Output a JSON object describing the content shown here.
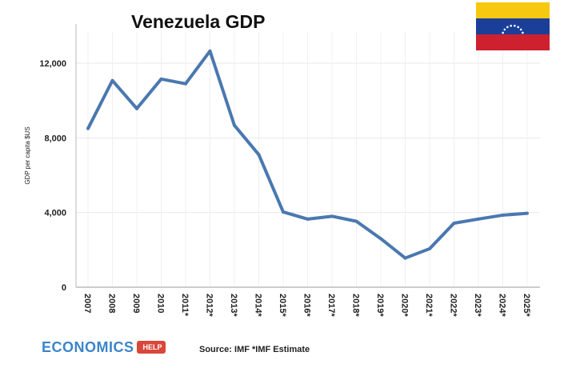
{
  "chart_data": {
    "type": "line",
    "title": "Venezuela GDP",
    "xlabel": "",
    "ylabel": "GDP per capita $US",
    "categories": [
      "2007",
      "2008",
      "2009",
      "2010",
      "2011*",
      "2012*",
      "2013*",
      "2014*",
      "2015*",
      "2016*",
      "2017*",
      "2018*",
      "2019*",
      "2020*",
      "2021*",
      "2022*",
      "2023*",
      "2024*",
      "2025*"
    ],
    "values": [
      8500,
      11070,
      9570,
      11150,
      10900,
      12650,
      8670,
      7100,
      4030,
      3650,
      3800,
      3530,
      2600,
      1560,
      2060,
      3430,
      3650,
      3860,
      3960
    ],
    "ylim": [
      0,
      14000
    ],
    "yticks": [
      0,
      4000,
      8000,
      12000
    ],
    "ytick_labels": [
      "0",
      "4,000",
      "8,000",
      "12,000"
    ],
    "grid": true,
    "line_color": "#4a78b0"
  },
  "source": "Source: IMF *IMF Estimate",
  "logo": {
    "name": "ECONOMICS",
    "badge": "HELP"
  },
  "flag": {
    "colors": [
      "#f6c910",
      "#1b3f99",
      "#cf2030"
    ]
  }
}
